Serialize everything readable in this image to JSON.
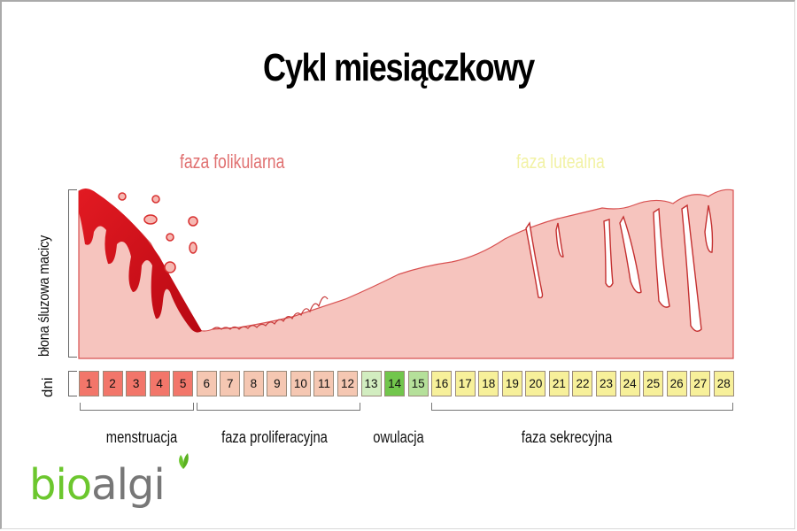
{
  "title": "Cykl miesiączkowy",
  "phases": {
    "follicular": {
      "label": "faza folikularna",
      "color": "#e07070"
    },
    "luteal": {
      "label": "faza lutealna",
      "color": "#f2f2a4"
    }
  },
  "axis": {
    "y_label": "błona śluzowa macicy",
    "days_label": "dni"
  },
  "days": [
    {
      "n": "1",
      "color": "#f2766a",
      "group": "menstruacja"
    },
    {
      "n": "2",
      "color": "#f2766a",
      "group": "menstruacja"
    },
    {
      "n": "3",
      "color": "#f2766a",
      "group": "menstruacja"
    },
    {
      "n": "4",
      "color": "#f2766a",
      "group": "menstruacja"
    },
    {
      "n": "5",
      "color": "#f2766a",
      "group": "menstruacja"
    },
    {
      "n": "6",
      "color": "#f5c7b2",
      "group": "faza proliferacyjna"
    },
    {
      "n": "7",
      "color": "#f5c7b2",
      "group": "faza proliferacyjna"
    },
    {
      "n": "8",
      "color": "#f5c7b2",
      "group": "faza proliferacyjna"
    },
    {
      "n": "9",
      "color": "#f5c7b2",
      "group": "faza proliferacyjna"
    },
    {
      "n": "10",
      "color": "#f5c7b2",
      "group": "faza proliferacyjna"
    },
    {
      "n": "11",
      "color": "#f5c7b2",
      "group": "faza proliferacyjna"
    },
    {
      "n": "12",
      "color": "#f5c7b2",
      "group": "faza proliferacyjna"
    },
    {
      "n": "13",
      "color": "#d2edc0",
      "group": "owulacja"
    },
    {
      "n": "14",
      "color": "#72c64c",
      "group": "owulacja"
    },
    {
      "n": "15",
      "color": "#b5e09a",
      "group": "owulacja"
    },
    {
      "n": "16",
      "color": "#f7f09a",
      "group": "faza sekrecyjna"
    },
    {
      "n": "17",
      "color": "#f7f09a",
      "group": "faza sekrecyjna"
    },
    {
      "n": "18",
      "color": "#f7f09a",
      "group": "faza sekrecyjna"
    },
    {
      "n": "19",
      "color": "#f7f09a",
      "group": "faza sekrecyjna"
    },
    {
      "n": "20",
      "color": "#f7f09a",
      "group": "faza sekrecyjna"
    },
    {
      "n": "21",
      "color": "#f7f09a",
      "group": "faza sekrecyjna"
    },
    {
      "n": "22",
      "color": "#f7f09a",
      "group": "faza sekrecyjna"
    },
    {
      "n": "23",
      "color": "#f7f09a",
      "group": "faza sekrecyjna"
    },
    {
      "n": "24",
      "color": "#f7f09a",
      "group": "faza sekrecyjna"
    },
    {
      "n": "25",
      "color": "#f7f09a",
      "group": "faza sekrecyjna"
    },
    {
      "n": "26",
      "color": "#f7f09a",
      "group": "faza sekrecyjna"
    },
    {
      "n": "27",
      "color": "#f7f09a",
      "group": "faza sekrecyjna"
    },
    {
      "n": "28",
      "color": "#f7f09a",
      "group": "faza sekrecyjna"
    }
  ],
  "groups": [
    {
      "label": "menstruacja",
      "days": "1-5"
    },
    {
      "label": "faza proliferacyjna",
      "days": "6-12"
    },
    {
      "label": "owulacja",
      "days": "13-15"
    },
    {
      "label": "faza sekrecyjna",
      "days": "16-28"
    }
  ],
  "logo": {
    "part1": "bio",
    "part2": "algi"
  },
  "colors": {
    "tissue": "#f6c4be",
    "tissue_edge": "#c94040",
    "blood": "#d8101c"
  }
}
